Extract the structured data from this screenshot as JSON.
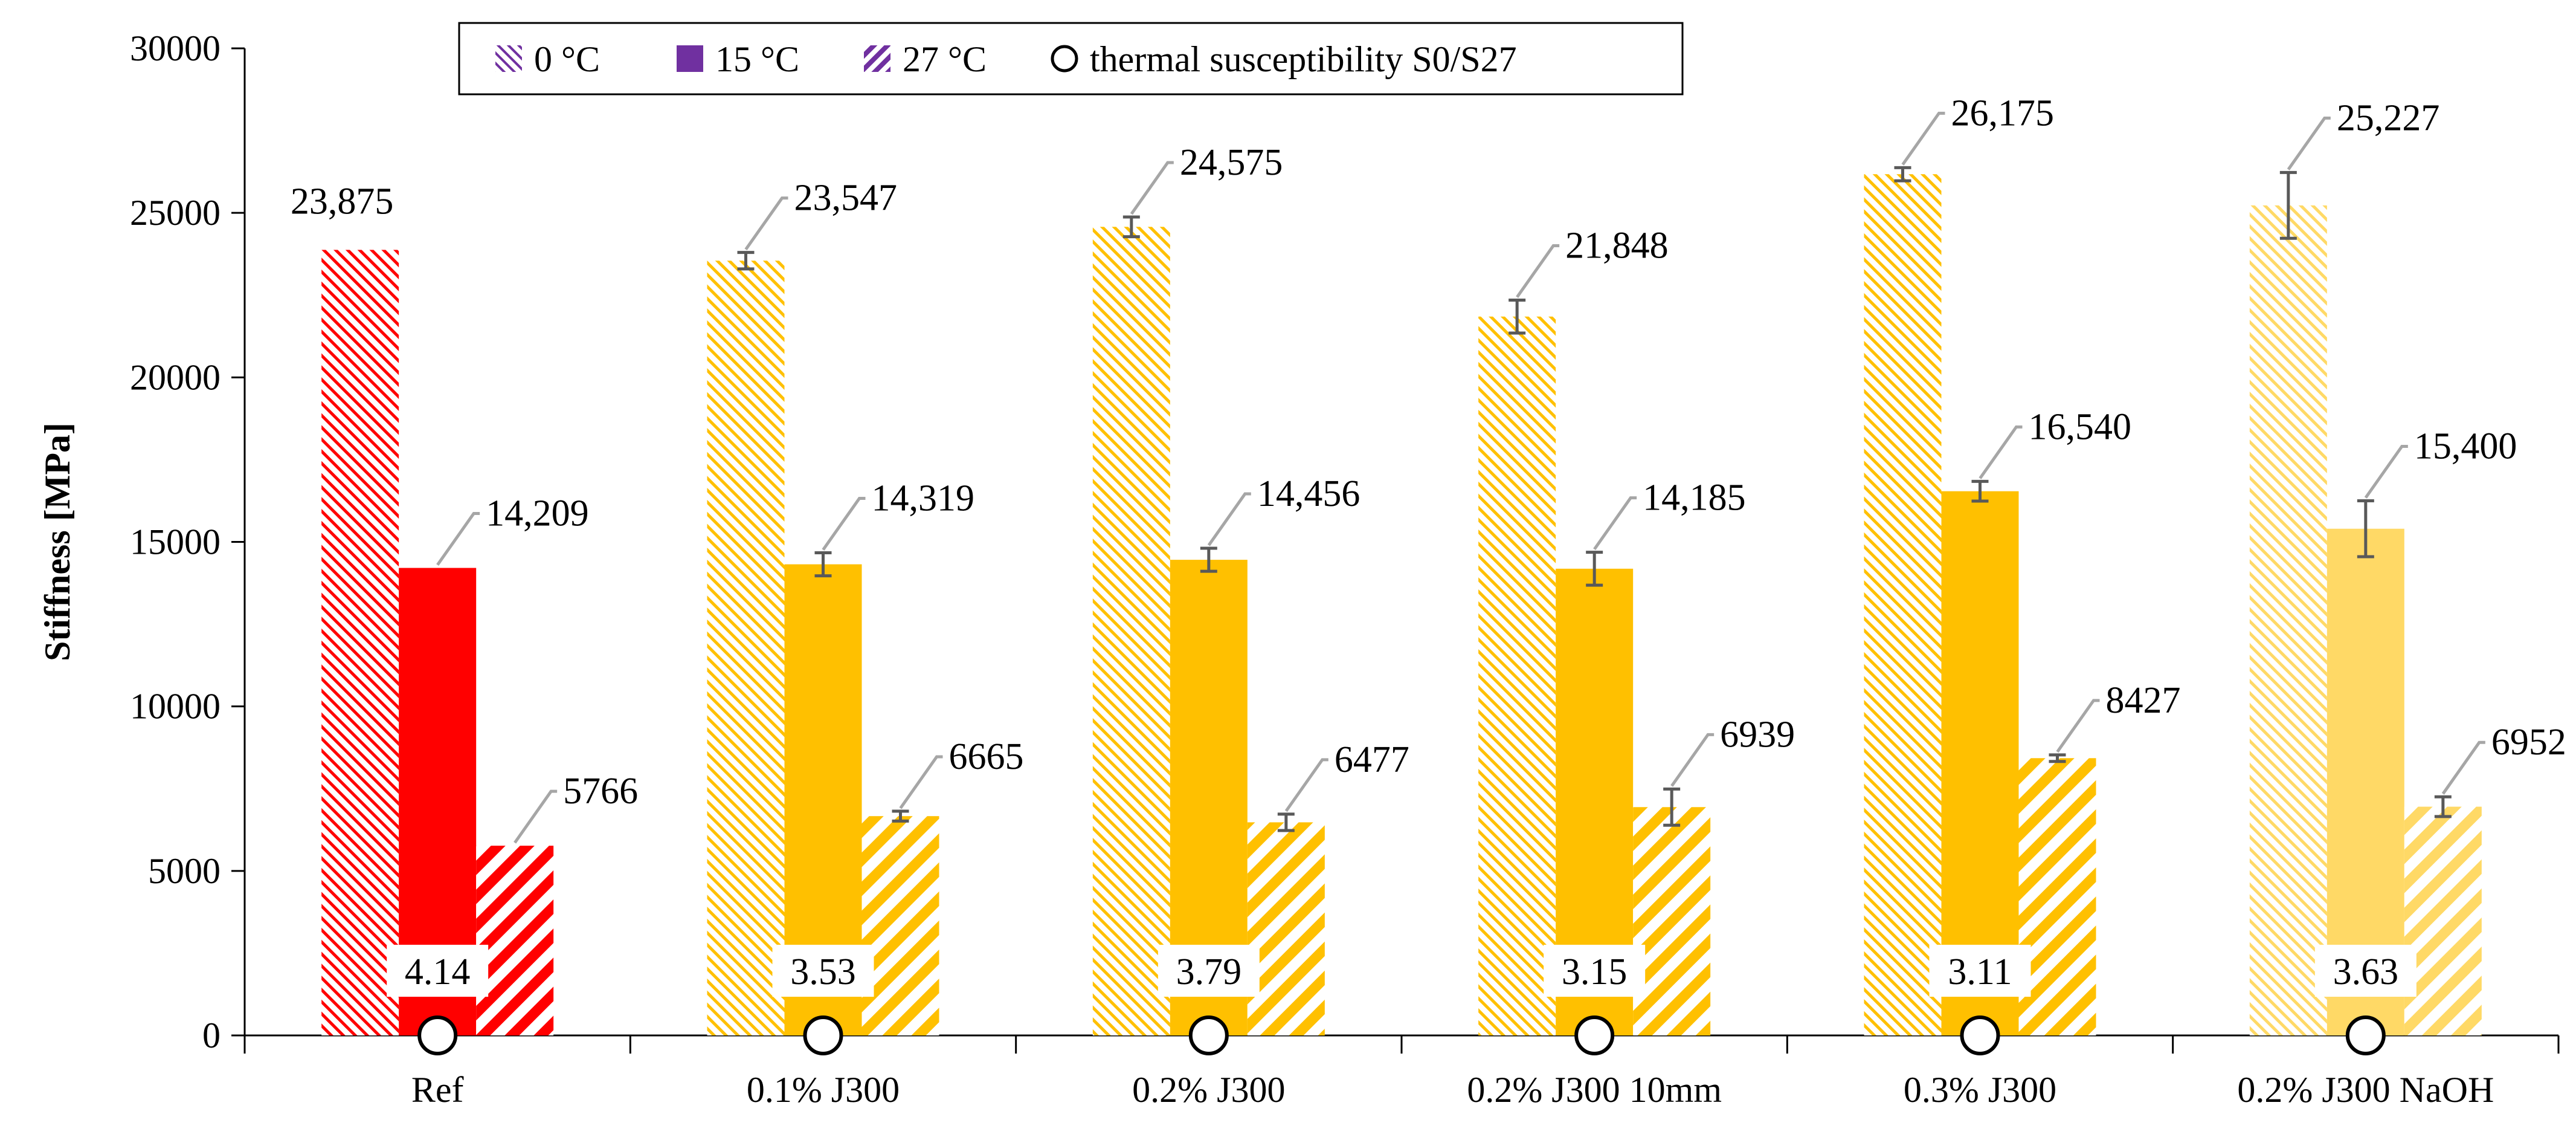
{
  "chart_data": {
    "type": "bar",
    "title": "",
    "xlabel": "",
    "ylabel": "Stiffness [MPa]",
    "ylim": [
      0,
      30000
    ],
    "yticks": [
      0,
      5000,
      10000,
      15000,
      20000,
      25000,
      30000
    ],
    "categories": [
      "Ref",
      "0.1% J300",
      "0.2% J300",
      "0.2% J300 10mm",
      "0.3% J300",
      "0.2% J300 NaOH"
    ],
    "series": [
      {
        "name": "0 °C",
        "values": [
          23875,
          23547,
          24575,
          21848,
          26175,
          25227
        ],
        "labels": [
          "23,875",
          "23,547",
          "24,575",
          "21,848",
          "26,175",
          "25,227"
        ],
        "errors": [
          0,
          250,
          300,
          500,
          200,
          1000
        ]
      },
      {
        "name": "15 °C",
        "values": [
          14209,
          14319,
          14456,
          14185,
          16540,
          15400
        ],
        "labels": [
          "14,209",
          "14,319",
          "14,456",
          "14,185",
          "16,540",
          "15,400"
        ],
        "errors": [
          0,
          350,
          350,
          500,
          300,
          850
        ]
      },
      {
        "name": "27 °C",
        "values": [
          5766,
          6665,
          6477,
          6939,
          8427,
          6952
        ],
        "labels": [
          "5766",
          "6665",
          "6477",
          "6939",
          "8427",
          "6952"
        ],
        "errors": [
          0,
          150,
          250,
          550,
          100,
          300
        ]
      }
    ],
    "thermal_susceptibility": {
      "name": "thermal susceptibility S0/S27",
      "values": [
        4.14,
        3.53,
        3.79,
        3.15,
        3.11,
        3.63
      ],
      "labels": [
        "4.14",
        "3.53",
        "3.79",
        "3.15",
        "3.11",
        "3.63"
      ]
    },
    "group_colors": [
      "#ff0000",
      "#ffc000",
      "#ffc000",
      "#ffc000",
      "#ffc000",
      "#ffd966"
    ],
    "error_bar_color": "#595959",
    "leader_color": "#a6a6a6",
    "legend_position": "top-center"
  }
}
